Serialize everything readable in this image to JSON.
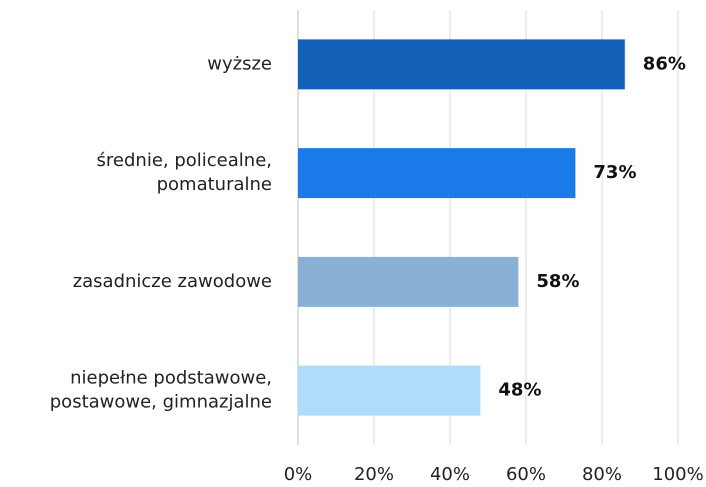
{
  "chart_data": {
    "type": "bar",
    "orientation": "horizontal",
    "categories": [
      [
        "wyższe"
      ],
      [
        "średnie, policealne,",
        "pomaturalne"
      ],
      [
        "zasadnicze zawodowe"
      ],
      [
        "niepełne podstawowe,",
        "postawowe, gimnazjalne"
      ]
    ],
    "values": [
      86,
      73,
      58,
      48
    ],
    "value_labels": [
      "86%",
      "73%",
      "58%",
      "48%"
    ],
    "colors": [
      "#1360b8",
      "#1a7ae8",
      "#8ab0d6",
      "#aedcfa"
    ],
    "xlim": [
      0,
      100
    ],
    "xticks": [
      {
        "value": 0,
        "label": "0%"
      },
      {
        "value": 20,
        "label": "20%"
      },
      {
        "value": 40,
        "label": "40%"
      },
      {
        "value": 60,
        "label": "60%"
      },
      {
        "value": 80,
        "label": "80%"
      },
      {
        "value": 100,
        "label": "100%"
      }
    ],
    "grid": true
  }
}
